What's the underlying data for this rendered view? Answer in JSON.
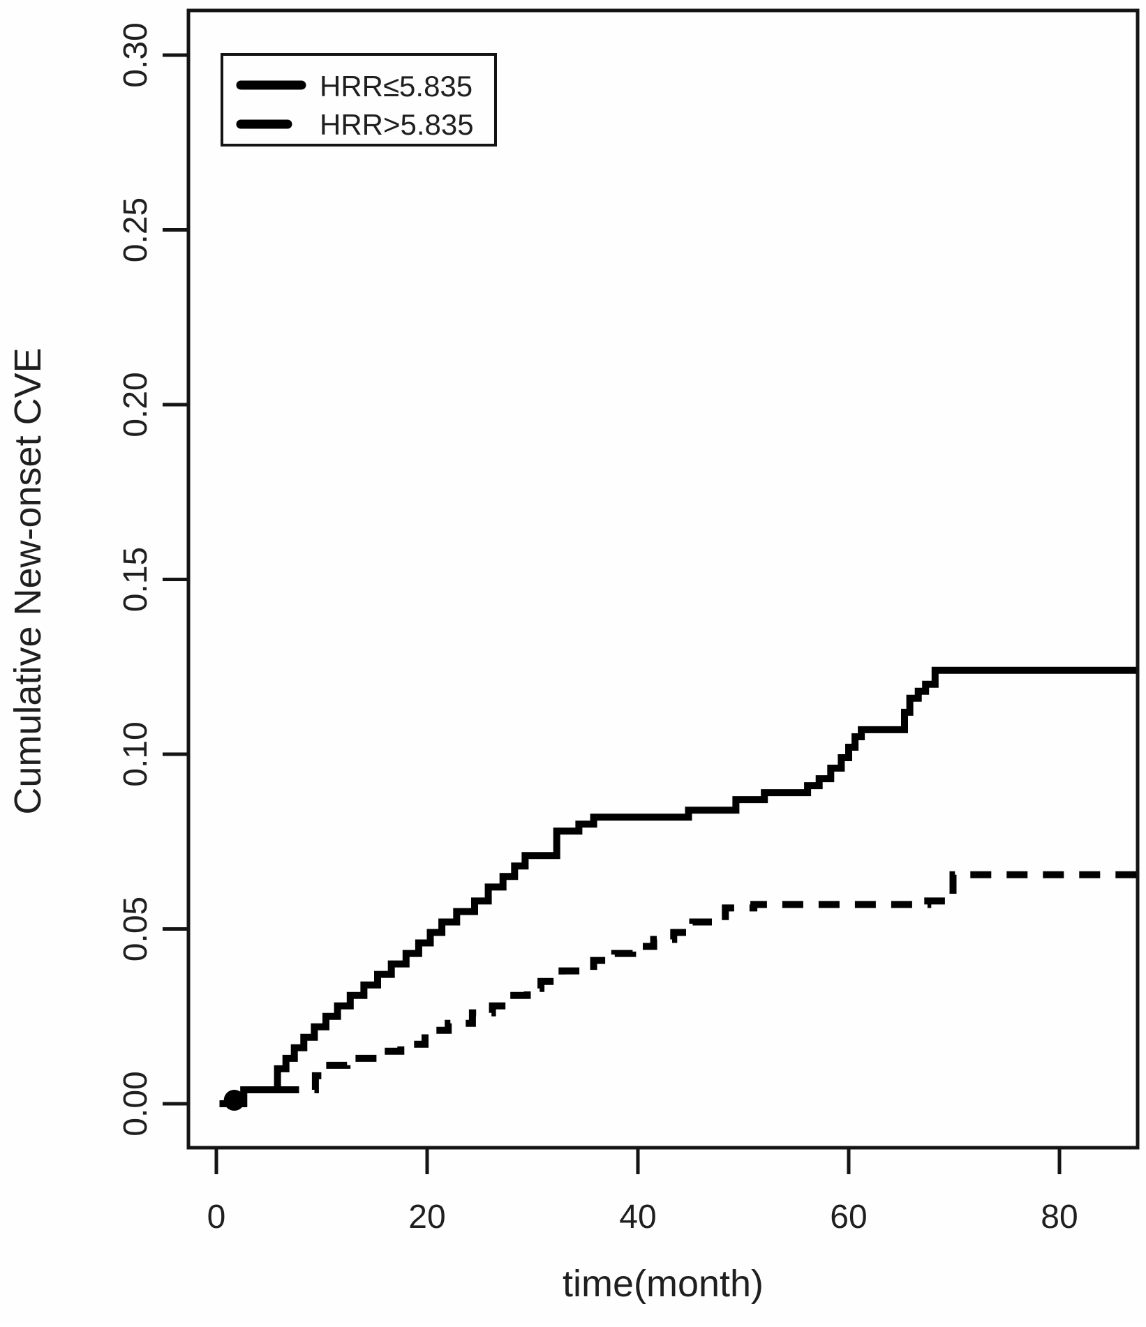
{
  "chart_data": {
    "type": "line",
    "subtype": "kaplan-meier-step",
    "title": "",
    "xlabel": "time(month)",
    "ylabel": "Cumulative New-onset CVE",
    "x_ticks": [
      0,
      20,
      40,
      60,
      80
    ],
    "y_ticks": [
      0.0,
      0.05,
      0.1,
      0.15,
      0.2,
      0.25,
      0.3
    ],
    "xlim": [
      0,
      87
    ],
    "ylim": [
      0,
      0.31
    ],
    "grid": false,
    "legend_position": "top-left",
    "frame": "full-box",
    "origin_marker": {
      "t": 1.7,
      "v": 0.001
    },
    "series": [
      {
        "name": "HRR≤5.835",
        "style": "solid",
        "color": "#000000",
        "points": [
          [
            0.3,
            0.0
          ],
          [
            2.6,
            0.004
          ],
          [
            5.8,
            0.01
          ],
          [
            6.6,
            0.013
          ],
          [
            7.4,
            0.016
          ],
          [
            8.3,
            0.019
          ],
          [
            9.3,
            0.022
          ],
          [
            10.4,
            0.025
          ],
          [
            11.5,
            0.028
          ],
          [
            12.7,
            0.031
          ],
          [
            14.0,
            0.034
          ],
          [
            15.3,
            0.037
          ],
          [
            16.6,
            0.04
          ],
          [
            18.0,
            0.043
          ],
          [
            19.2,
            0.046
          ],
          [
            20.3,
            0.049
          ],
          [
            21.4,
            0.052
          ],
          [
            22.8,
            0.055
          ],
          [
            24.5,
            0.058
          ],
          [
            25.8,
            0.062
          ],
          [
            27.2,
            0.065
          ],
          [
            28.3,
            0.068
          ],
          [
            29.3,
            0.071
          ],
          [
            32.3,
            0.078
          ],
          [
            34.4,
            0.08
          ],
          [
            35.8,
            0.082
          ],
          [
            44.8,
            0.084
          ],
          [
            49.3,
            0.087
          ],
          [
            52.0,
            0.089
          ],
          [
            56.1,
            0.091
          ],
          [
            57.2,
            0.093
          ],
          [
            58.3,
            0.096
          ],
          [
            59.3,
            0.099
          ],
          [
            60.0,
            0.102
          ],
          [
            60.6,
            0.105
          ],
          [
            61.2,
            0.107
          ],
          [
            65.3,
            0.112
          ],
          [
            65.8,
            0.116
          ],
          [
            66.6,
            0.118
          ],
          [
            67.3,
            0.12
          ],
          [
            68.2,
            0.124
          ],
          [
            87.3,
            0.124
          ]
        ]
      },
      {
        "name": "HRR>5.835",
        "style": "dashed",
        "color": "#000000",
        "points": [
          [
            0.3,
            0.0
          ],
          [
            2.6,
            0.004
          ],
          [
            9.4,
            0.008
          ],
          [
            10.2,
            0.011
          ],
          [
            12.4,
            0.013
          ],
          [
            15.5,
            0.015
          ],
          [
            17.5,
            0.017
          ],
          [
            19.8,
            0.021
          ],
          [
            22.0,
            0.023
          ],
          [
            24.3,
            0.026
          ],
          [
            26.2,
            0.028
          ],
          [
            27.8,
            0.031
          ],
          [
            29.5,
            0.033
          ],
          [
            30.8,
            0.035
          ],
          [
            32.8,
            0.038
          ],
          [
            35.8,
            0.041
          ],
          [
            37.8,
            0.043
          ],
          [
            39.5,
            0.045
          ],
          [
            41.5,
            0.047
          ],
          [
            43.4,
            0.049
          ],
          [
            45.2,
            0.052
          ],
          [
            48.3,
            0.056
          ],
          [
            51.0,
            0.057
          ],
          [
            67.5,
            0.058
          ],
          [
            69.9,
            0.0655
          ],
          [
            87.3,
            0.0655
          ]
        ]
      }
    ]
  },
  "legend": {
    "entries": [
      {
        "label": "HRR≤5.835",
        "line": "solid"
      },
      {
        "label": "HRR>5.835",
        "line": "dashed"
      }
    ]
  }
}
